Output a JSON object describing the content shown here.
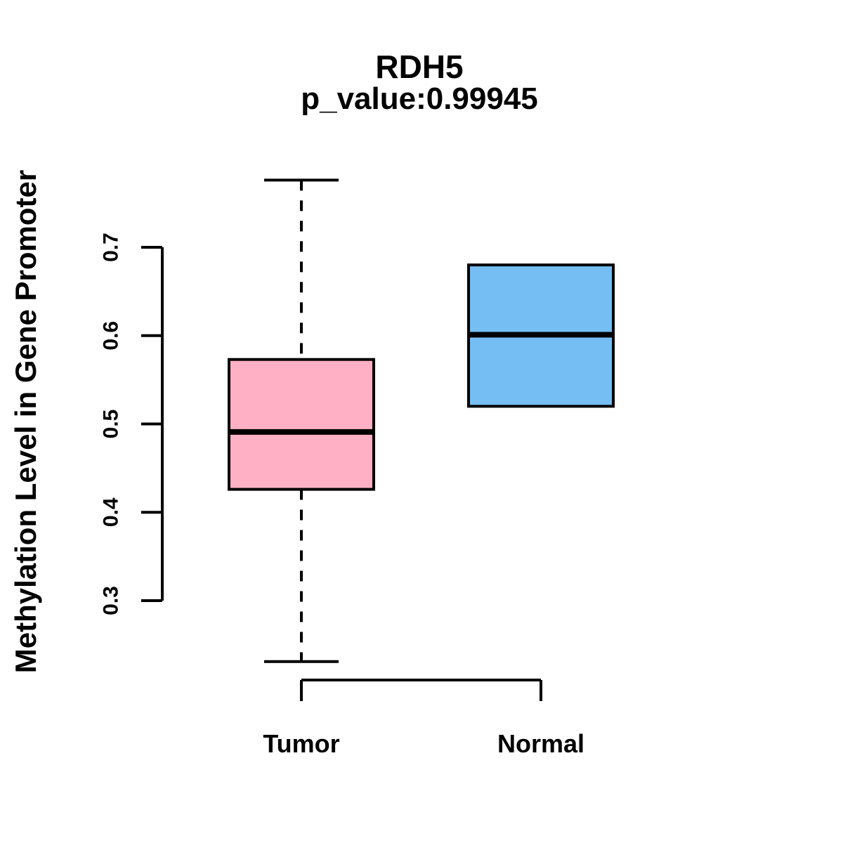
{
  "chart_data": {
    "type": "boxplot",
    "title": "RDH5",
    "subtitle": "p_value:0.99945",
    "ylabel": "Methylation Level in Gene Promoter",
    "xlabel": "",
    "ylim": [
      0.3,
      0.7
    ],
    "ytick_labels": [
      "0.3",
      "0.4",
      "0.5",
      "0.6",
      "0.7"
    ],
    "ytick_values": [
      0.3,
      0.4,
      0.5,
      0.6,
      0.7
    ],
    "grid": false,
    "legend": "none",
    "groups": [
      {
        "label": "Tumor",
        "fill_color": "#ffb0c4",
        "q1": 0.426,
        "median": 0.491,
        "q3": 0.573,
        "whisker_low": 0.231,
        "whisker_high": 0.776
      },
      {
        "label": "Normal",
        "fill_color": "#74bef4",
        "q1": 0.52,
        "median": 0.601,
        "q3": 0.68,
        "whisker_low": 0.52,
        "whisker_high": 0.68
      }
    ],
    "border_color": "#000000",
    "text_color": "#000000",
    "background_color": "#ffffff"
  }
}
